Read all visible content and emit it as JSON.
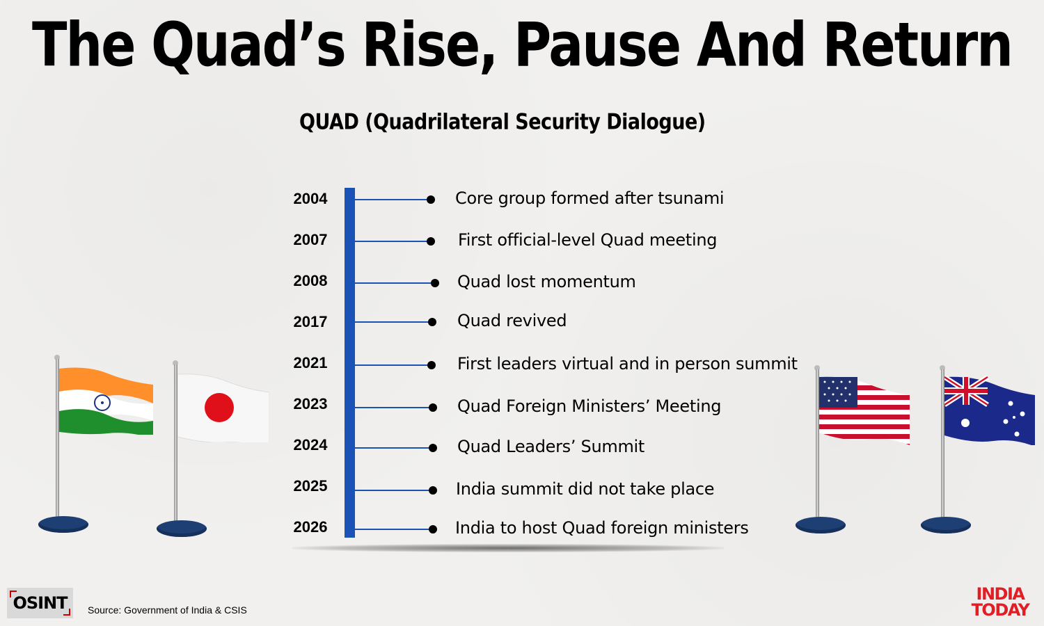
{
  "header": {
    "title": "The Quad’s Rise, Pause And Return",
    "subtitle": "QUAD (Quadrilateral Security Dialogue)"
  },
  "timeline": [
    {
      "year": "2004",
      "event": "Core group formed after tsunami"
    },
    {
      "year": "2007",
      "event": "First official-level Quad meeting"
    },
    {
      "year": "2008",
      "event": "Quad lost momentum"
    },
    {
      "year": "2017",
      "event": "Quad revived"
    },
    {
      "year": "2021",
      "event": "First leaders virtual and in person summit"
    },
    {
      "year": "2023",
      "event": "Quad Foreign Ministers’ Meeting"
    },
    {
      "year": "2024",
      "event": "Quad Leaders’ Summit"
    },
    {
      "year": "2025",
      "event": "India summit did not take place"
    },
    {
      "year": "2026",
      "event": "India to host Quad foreign ministers"
    }
  ],
  "flags": [
    "india-flag",
    "japan-flag",
    "usa-flag",
    "australia-flag"
  ],
  "colors": {
    "timeline_axis": "#1a52b5",
    "flag_base": "#1e3f73",
    "brand_red": "#e01e25"
  },
  "footer": {
    "source": "Source: Government of India & CSIS",
    "osint_logo": "OSINT",
    "brand_logo": [
      "INDIA",
      "TODAY"
    ]
  }
}
